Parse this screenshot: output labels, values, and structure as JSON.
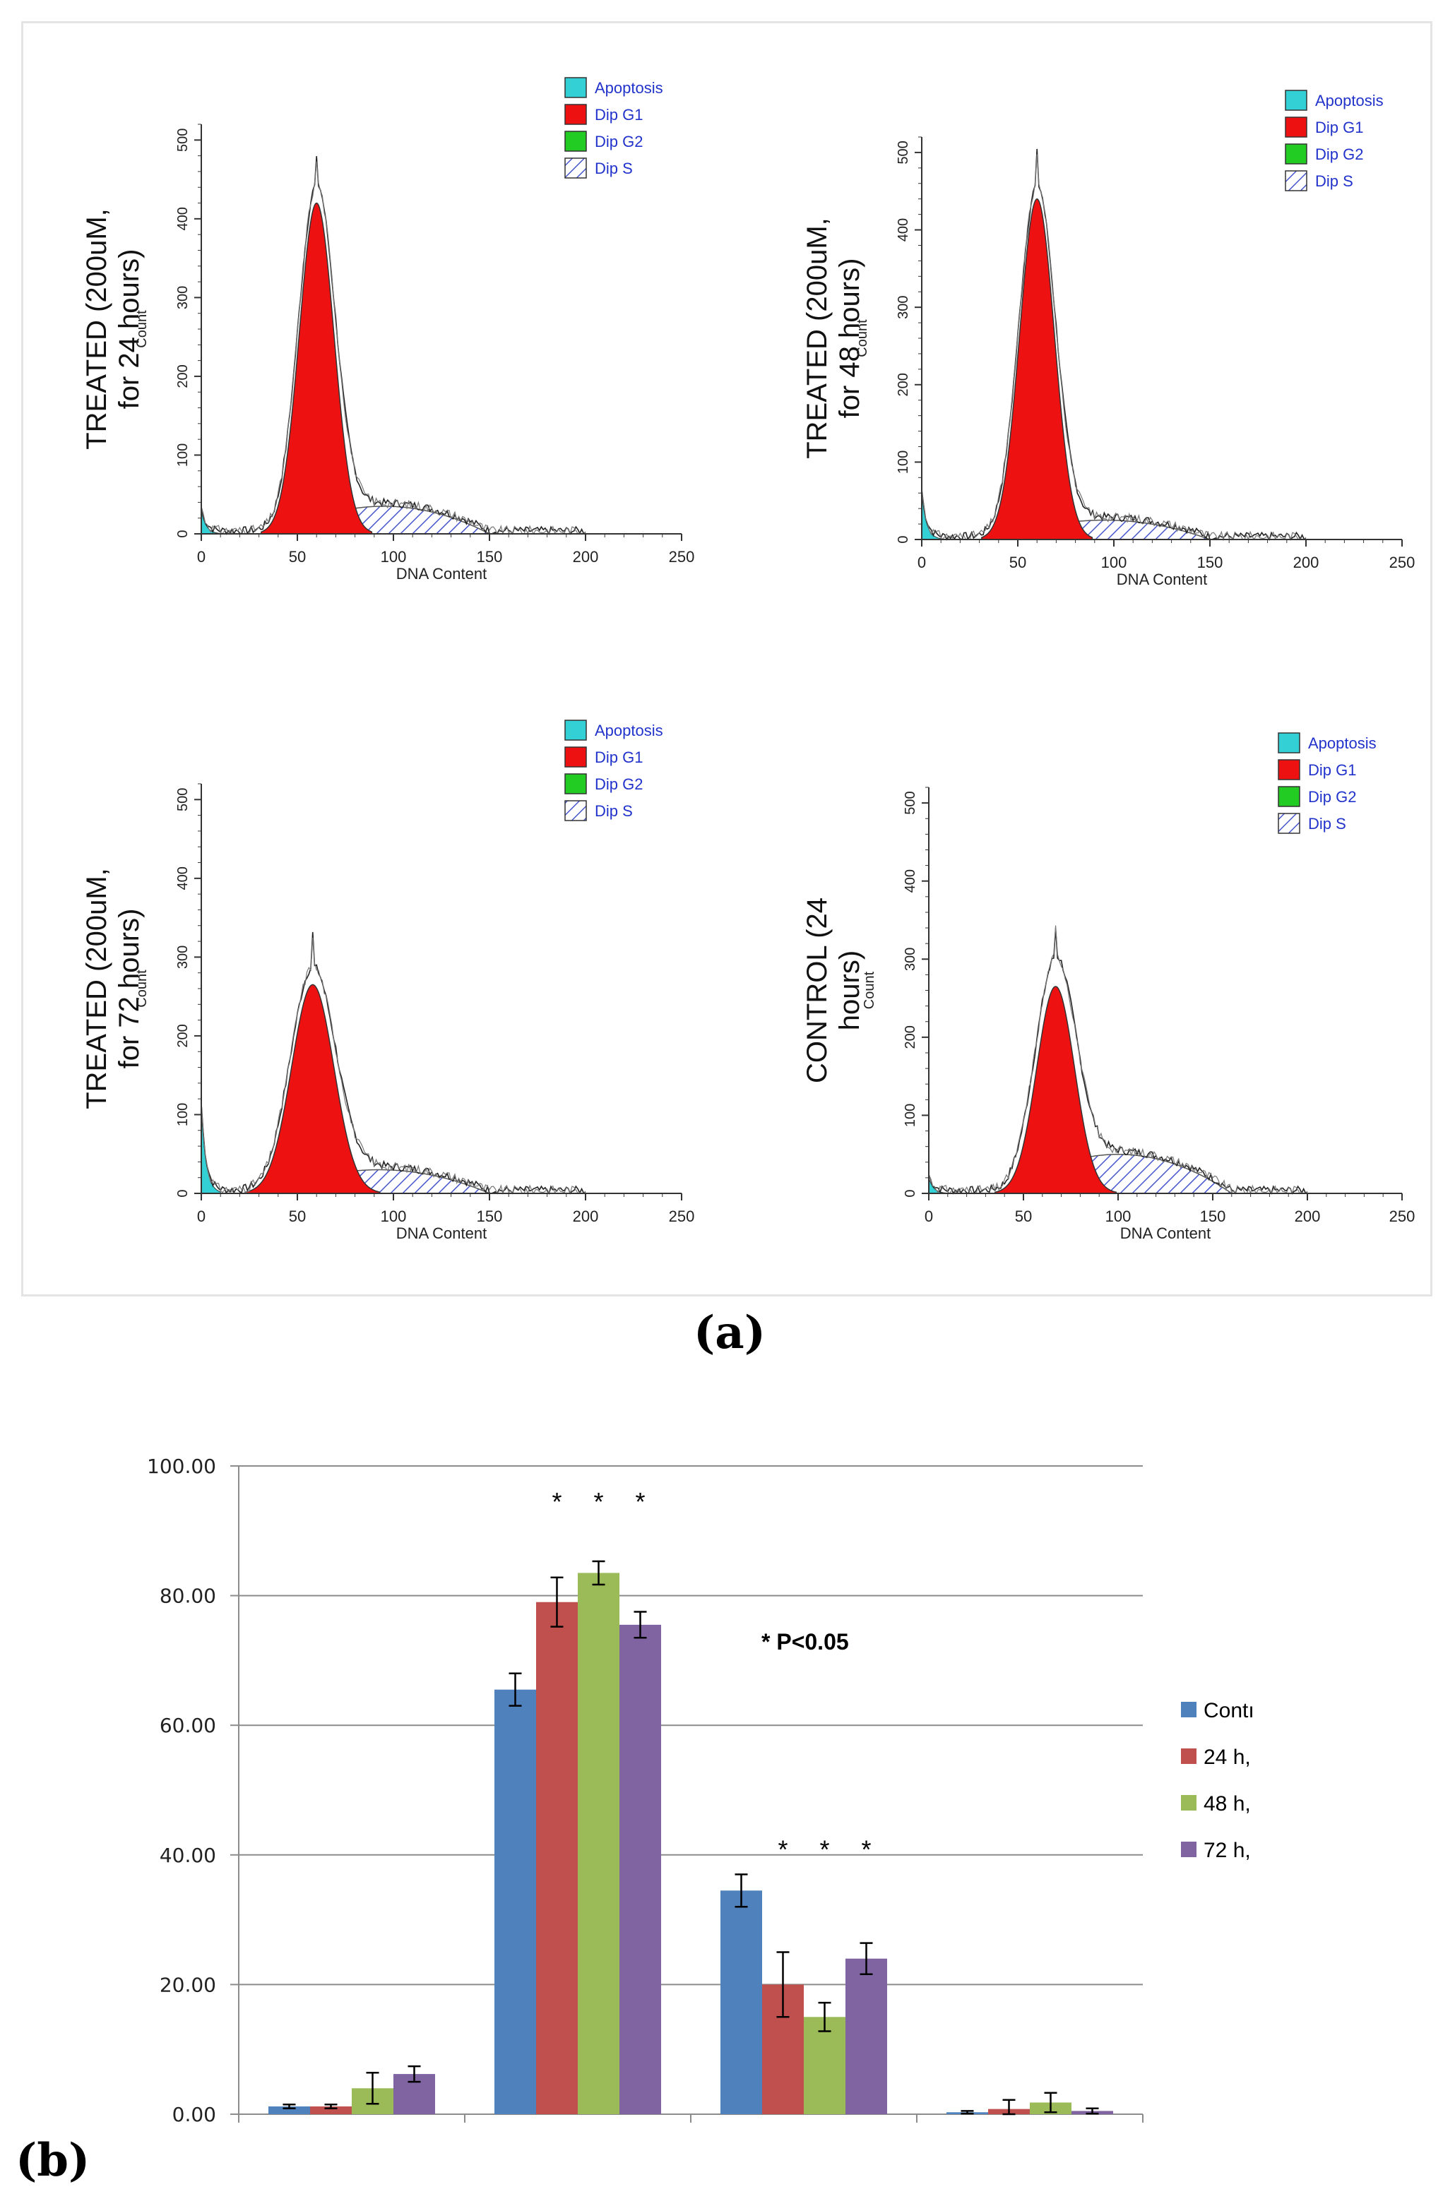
{
  "figure": {
    "panel_a_label": "(a)",
    "panel_b_label": "(b)"
  },
  "histogram_common": {
    "xlabel": "DNA Content",
    "ylabel": "Count",
    "x_ticks": [
      "0",
      "50",
      "100",
      "150",
      "200",
      "250"
    ],
    "y_ticks": [
      "0",
      "100",
      "200",
      "300",
      "400",
      "500"
    ],
    "legend": [
      "Apoptosis",
      "Dip G1",
      "Dip G2",
      "Dip S"
    ]
  },
  "colors": {
    "apoptosis": "#33d1d6",
    "g1": "#ee1111",
    "g2": "#22cc22",
    "s_hatch": "#4455cc",
    "legend_text": "#2233cc",
    "control": "#4f81bd",
    "h24": "#c0504d",
    "h48": "#9bbb59",
    "h72": "#8064a2"
  },
  "chart_data": [
    {
      "type": "area",
      "title_lines": [
        "TREATED (200uM,",
        "for 24 hours)"
      ],
      "xlabel": "DNA Content",
      "ylabel": "Count",
      "xlim": [
        0,
        250
      ],
      "ylim": [
        0,
        520
      ],
      "g1_peak": {
        "x": 60,
        "y": 420,
        "sigma": 9
      },
      "envelope_peak": 475,
      "apoptosis_peak": 30,
      "s_phase_peak": 35,
      "s_phase_range": [
        40,
        150
      ]
    },
    {
      "type": "area",
      "title_lines": [
        "TREATED (200uM,",
        "for 48 hours)"
      ],
      "xlabel": "DNA Content",
      "ylabel": "Count",
      "xlim": [
        0,
        250
      ],
      "ylim": [
        0,
        520
      ],
      "g1_peak": {
        "x": 60,
        "y": 440,
        "sigma": 9
      },
      "envelope_peak": 500,
      "apoptosis_peak": 60,
      "s_phase_peak": 25,
      "s_phase_range": [
        40,
        150
      ]
    },
    {
      "type": "area",
      "title_lines": [
        "TREATED (200uM,",
        "for 72 hours)"
      ],
      "xlabel": "DNA Content",
      "ylabel": "Count",
      "xlim": [
        0,
        250
      ],
      "ylim": [
        0,
        520
      ],
      "g1_peak": {
        "x": 58,
        "y": 265,
        "sigma": 11
      },
      "envelope_peak": 330,
      "apoptosis_peak": 110,
      "s_phase_peak": 30,
      "s_phase_range": [
        35,
        150
      ]
    },
    {
      "type": "area",
      "title_lines": [
        "CONTROL (24",
        "hours)"
      ],
      "xlabel": "DNA Content",
      "ylabel": "Count",
      "xlim": [
        0,
        250
      ],
      "ylim": [
        0,
        520
      ],
      "g1_peak": {
        "x": 67,
        "y": 265,
        "sigma": 10
      },
      "envelope_peak": 340,
      "apoptosis_peak": 20,
      "s_phase_peak": 50,
      "s_phase_range": [
        40,
        160
      ]
    },
    {
      "type": "bar",
      "ylim": [
        0,
        100
      ],
      "y_ticks": [
        "0.00",
        "20.00",
        "40.00",
        "60.00",
        "80.00",
        "100.00"
      ],
      "categories": [
        "",
        "",
        "",
        ""
      ],
      "series": [
        {
          "name": "Contı",
          "values": [
            1.2,
            65.5,
            34.5,
            0.3
          ],
          "errors": [
            0.3,
            2.5,
            2.5,
            0.2
          ]
        },
        {
          "name": "24 h,",
          "values": [
            1.2,
            79.0,
            20.0,
            0.8
          ],
          "errors": [
            0.3,
            3.8,
            5.0,
            1.4
          ]
        },
        {
          "name": "48 h,",
          "values": [
            4.0,
            83.5,
            15.0,
            1.8
          ],
          "errors": [
            2.4,
            1.8,
            2.2,
            1.5
          ]
        },
        {
          "name": "72 h,",
          "values": [
            6.2,
            75.5,
            24.0,
            0.5
          ],
          "errors": [
            1.2,
            2.0,
            2.4,
            0.4
          ]
        }
      ],
      "significance": [
        {
          "category_index": 1,
          "series_indices": [
            1,
            2,
            3
          ],
          "label": "*"
        },
        {
          "category_index": 2,
          "series_indices": [
            1,
            2,
            3
          ],
          "label": "*"
        }
      ],
      "annotation": "* P<0.05",
      "legend_position": "right"
    }
  ]
}
